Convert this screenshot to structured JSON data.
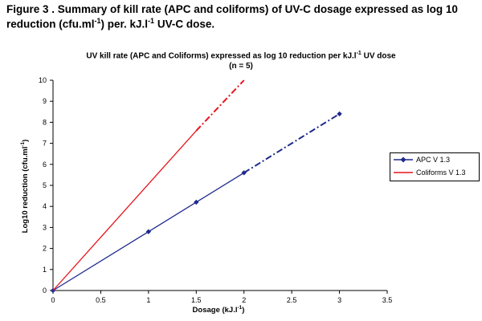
{
  "figure_caption": {
    "line1_a": "Figure 3 . Summary of kill rate (APC and coliforms) of UV-C dosage expressed as log 10",
    "line2_a": "reduction (cfu.ml",
    "line2_sup1": "-1",
    "line2_b": ") per. kJ.l",
    "line2_sup2": "-1",
    "line2_c": " UV-C dose."
  },
  "chart_data": {
    "type": "line",
    "title_a": "UV  kill rate (APC and Coliforms) expressed as log 10 reduction per kJ.l",
    "title_sup": "-1",
    "title_b": " UV dose",
    "subtitle": "(n = 5)",
    "xlabel": "Dosage (kJ.l",
    "xlabel_sup": "-1",
    "xlabel_end": ")",
    "ylabel": "Log10 reduction (cfu.ml",
    "ylabel_sup": "-1",
    "ylabel_end": ")",
    "xlim": [
      0,
      3.5
    ],
    "ylim": [
      0,
      10
    ],
    "x_ticks": [
      "0",
      "0.5",
      "1",
      "1.5",
      "2",
      "2.5",
      "3",
      "3.5"
    ],
    "y_ticks": [
      "0",
      "1",
      "2",
      "3",
      "4",
      "5",
      "6",
      "7",
      "8",
      "9",
      "10"
    ],
    "grid": false,
    "legend_position": "right",
    "series": [
      {
        "name": "APC V 1.3",
        "color": "#1f2a8c",
        "marker": "diamond",
        "points": [
          [
            0,
            0
          ],
          [
            1,
            2.8
          ],
          [
            1.5,
            4.2
          ],
          [
            2,
            5.6
          ],
          [
            3,
            8.4
          ]
        ],
        "solid_until_x": 2
      },
      {
        "name": "Coliforms V 1.3",
        "color": "#e8141c",
        "marker": "none",
        "points": [
          [
            0,
            0
          ],
          [
            1.5,
            7.6
          ],
          [
            2,
            10
          ]
        ],
        "solid_until_x": 1.5
      }
    ]
  }
}
